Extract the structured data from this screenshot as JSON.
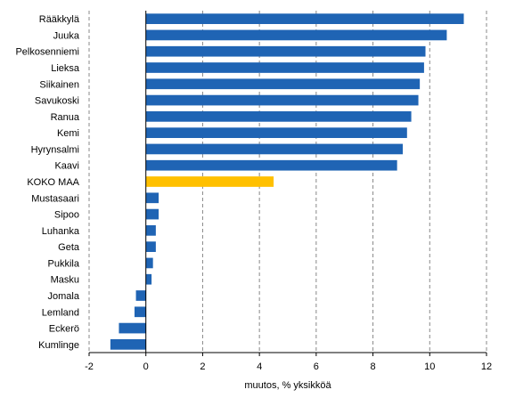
{
  "chart_data": {
    "type": "bar",
    "orientation": "horizontal",
    "categories": [
      "Rääkkylä",
      "Juuka",
      "Pelkosenniemi",
      "Lieksa",
      "Siikainen",
      "Savukoski",
      "Ranua",
      "Kemi",
      "Hyrynsalmi",
      "Kaavi",
      "KOKO MAA",
      "Mustasaari",
      "Sipoo",
      "Luhanka",
      "Geta",
      "Pukkila",
      "Masku",
      "Jomala",
      "Lemland",
      "Eckerö",
      "Kumlinge"
    ],
    "values": [
      11.2,
      10.6,
      9.85,
      9.8,
      9.65,
      9.6,
      9.35,
      9.2,
      9.05,
      8.85,
      4.5,
      0.45,
      0.45,
      0.35,
      0.35,
      0.25,
      0.2,
      -0.35,
      -0.4,
      -0.95,
      -1.25
    ],
    "highlight": "KOKO MAA",
    "xlabel": "muutos,  % yksikköä",
    "xlim": [
      -2,
      12
    ],
    "xticks": [
      -2,
      0,
      2,
      4,
      6,
      8,
      10,
      12
    ],
    "grid": "vertical-dashed",
    "legend": "none",
    "colors": {
      "bar": "#1F64B4",
      "highlight": "#FFC000",
      "grid": "#888888",
      "axis": "#000000"
    }
  }
}
